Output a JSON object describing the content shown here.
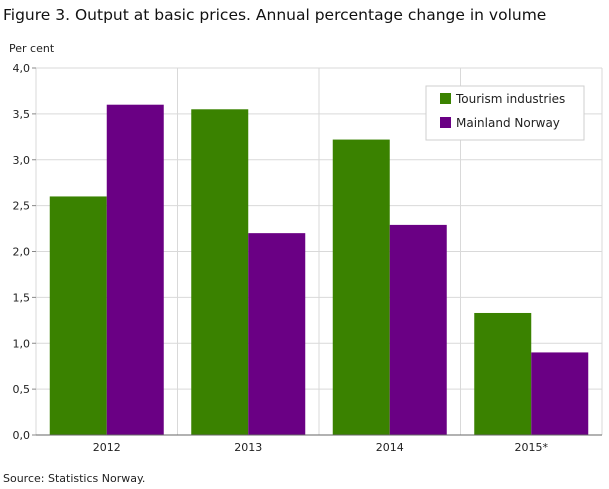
{
  "chart_data": {
    "type": "bar",
    "title": "Figure 3. Output at basic prices. Annual percentage change in volume",
    "ylabel": "Per cent",
    "xlabel": "",
    "categories": [
      "2012",
      "2013",
      "2014",
      "2015*"
    ],
    "series": [
      {
        "name": "Tourism industries",
        "color": "#3a8200",
        "values": [
          2.6,
          3.55,
          3.22,
          1.33
        ]
      },
      {
        "name": "Mainland Norway",
        "color": "#6a0084",
        "values": [
          3.6,
          2.2,
          2.29,
          0.9
        ]
      }
    ],
    "ylim": [
      0,
      4
    ],
    "yticks": [
      "0,0",
      "0,5",
      "1,0",
      "1,5",
      "2,0",
      "2,5",
      "3,0",
      "3,5",
      "4,0"
    ],
    "grid": true,
    "legend_position": "top-right",
    "source": "Source: Statistics Norway."
  }
}
